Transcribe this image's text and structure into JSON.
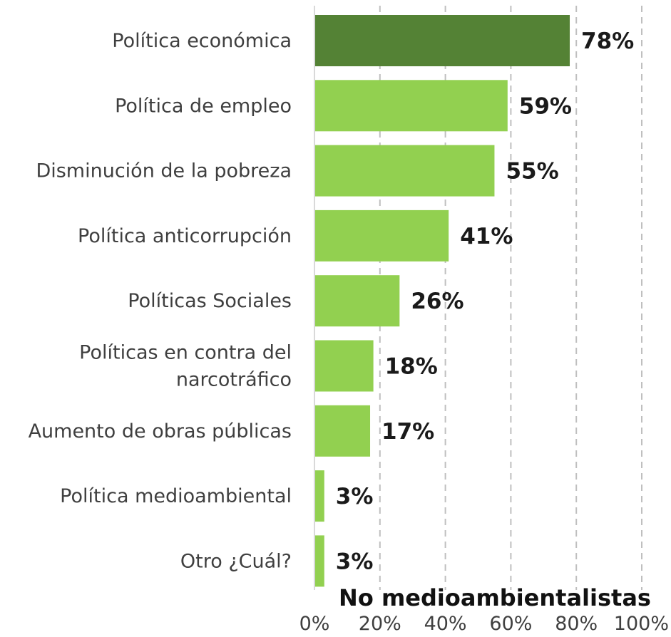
{
  "chart_data": {
    "type": "bar",
    "orientation": "horizontal",
    "categories": [
      [
        "Política económica"
      ],
      [
        "Política de empleo"
      ],
      [
        "Disminución de la pobreza"
      ],
      [
        "Política anticorrupción"
      ],
      [
        "Políticas Sociales"
      ],
      [
        "Políticas en contra del",
        "narcotráfico"
      ],
      [
        "Aumento de obras públicas"
      ],
      [
        "Política medioambiental"
      ],
      [
        "Otro ¿Cuál?"
      ]
    ],
    "values": [
      78,
      59,
      55,
      41,
      26,
      18,
      17,
      3,
      3
    ],
    "value_labels": [
      "78%",
      "59%",
      "55%",
      "41%",
      "26%",
      "18%",
      "17%",
      "3%",
      "3%"
    ],
    "highlight_index": 0,
    "colors": {
      "highlight": "#548235",
      "bar": "#92d050",
      "grid": "#bfbfbf",
      "axis": "#d9d9d9"
    },
    "xlim": [
      0,
      100
    ],
    "xticks": [
      "0%",
      "20%",
      "40%",
      "60%",
      "80%",
      "100%"
    ],
    "xlabel": "No medioambientalistas",
    "grid": true,
    "grid_style": "dashed"
  }
}
